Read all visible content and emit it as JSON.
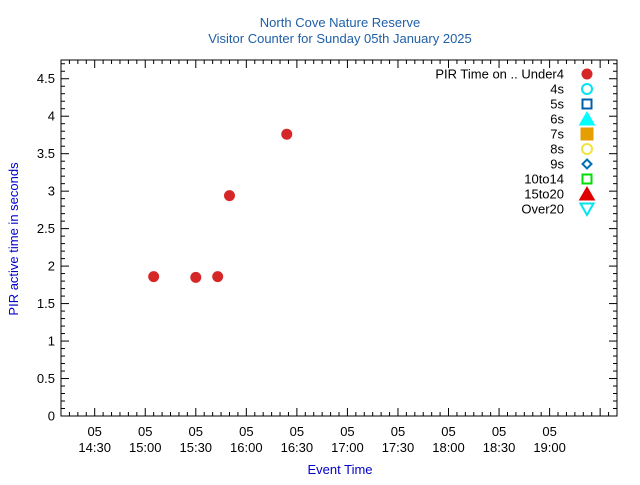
{
  "chart_data": {
    "type": "scatter",
    "title": "North Cove Nature Reserve",
    "subtitle": "Visitor Counter for Sunday 05th January 2025",
    "xlabel": "Event Time",
    "ylabel": "PIR active time in seconds",
    "ylim": [
      0,
      4.75
    ],
    "xlim": [
      "14:10",
      "19:40"
    ],
    "grid": false,
    "legend_position": "top-right",
    "legend_title": "PIR Time on ..",
    "x_ticks": [
      {
        "day": "05",
        "time": "14:30"
      },
      {
        "day": "05",
        "time": "15:00"
      },
      {
        "day": "05",
        "time": "15:30"
      },
      {
        "day": "05",
        "time": "16:00"
      },
      {
        "day": "05",
        "time": "16:30"
      },
      {
        "day": "05",
        "time": "17:00"
      },
      {
        "day": "05",
        "time": "17:30"
      },
      {
        "day": "05",
        "time": "18:00"
      },
      {
        "day": "05",
        "time": "18:30"
      },
      {
        "day": "05",
        "time": "19:00"
      }
    ],
    "y_ticks": [
      "0",
      "0.5",
      "1",
      "1.5",
      "2",
      "2.5",
      "3",
      "3.5",
      "4",
      "4.5"
    ],
    "series": [
      {
        "name": "Under4",
        "marker": "circle-filled",
        "color": "#d62728",
        "points": [
          {
            "x": "15:05",
            "y": 1.86
          },
          {
            "x": "15:30",
            "y": 1.85
          },
          {
            "x": "15:43",
            "y": 1.86
          },
          {
            "x": "15:50",
            "y": 2.94
          },
          {
            "x": "16:24",
            "y": 3.76
          }
        ]
      },
      {
        "name": "4s",
        "marker": "circle-open",
        "color": "#00e5ee",
        "points": []
      },
      {
        "name": "5s",
        "marker": "square-open",
        "color": "#0060ad",
        "points": []
      },
      {
        "name": "6s",
        "marker": "triangle-up-filled",
        "color": "#00ffff",
        "points": []
      },
      {
        "name": "7s",
        "marker": "square-filled",
        "color": "#e69f00",
        "points": []
      },
      {
        "name": "8s",
        "marker": "circle-open",
        "color": "#f0e442",
        "points": []
      },
      {
        "name": "9s",
        "marker": "diamond-open",
        "color": "#0072b2",
        "points": []
      },
      {
        "name": "10to14",
        "marker": "square-open",
        "color": "#00dd00",
        "points": []
      },
      {
        "name": "15to20",
        "marker": "triangle-up-filled",
        "color": "#e00000",
        "points": []
      },
      {
        "name": "Over20",
        "marker": "triangle-down-open",
        "color": "#00e5ee",
        "points": []
      }
    ]
  },
  "colors": {
    "title": "#1f5fa6",
    "axis_label": "#0000cc",
    "axis": "#000000"
  }
}
